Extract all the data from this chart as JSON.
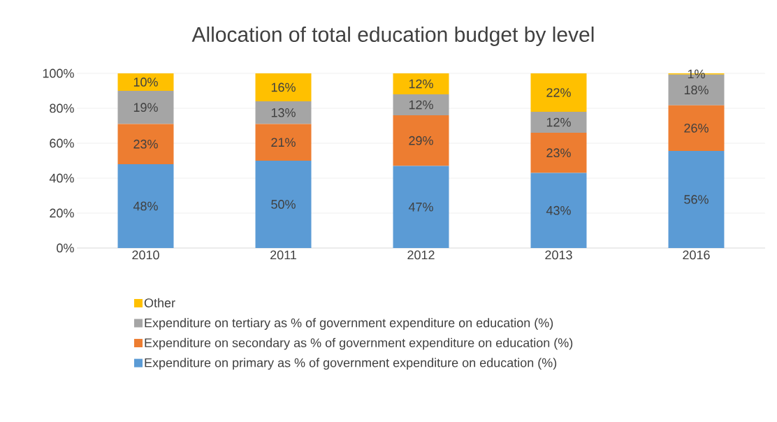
{
  "chart_data": {
    "type": "bar",
    "stacked": true,
    "title": "Allocation of total education budget by level",
    "categories": [
      "2010",
      "2011",
      "2012",
      "2013",
      "2016"
    ],
    "series": [
      {
        "name": "Expenditure on primary as % of government expenditure on education (%)",
        "color": "#5b9bd5",
        "values": [
          48,
          50,
          47,
          43,
          55.6
        ],
        "value_labels": [
          "48%",
          "50%",
          "47%",
          "43%",
          "56%"
        ]
      },
      {
        "name": "Expenditure on secondary as % of government expenditure on education (%)",
        "color": "#ed7d31",
        "values": [
          23,
          21,
          29,
          23,
          26.1
        ],
        "value_labels": [
          "23%",
          "21%",
          "29%",
          "23%",
          "26%"
        ]
      },
      {
        "name": "Expenditure on tertiary as % of government expenditure on education (%)",
        "color": "#a5a5a5",
        "values": [
          19,
          13,
          12,
          12,
          17.6
        ],
        "value_labels": [
          "19%",
          "13%",
          "12%",
          "12%",
          "18%"
        ]
      },
      {
        "name": "Other",
        "color": "#ffc000",
        "values": [
          10,
          16,
          12,
          22,
          0.7
        ],
        "value_labels": [
          "10%",
          "16%",
          "12%",
          "22%",
          "1%"
        ]
      }
    ],
    "ylim": [
      0,
      100
    ],
    "yticks": [
      {
        "value": 0,
        "label": "0%"
      },
      {
        "value": 20,
        "label": "20%"
      },
      {
        "value": 40,
        "label": "40%"
      },
      {
        "value": 60,
        "label": "60%"
      },
      {
        "value": 80,
        "label": "80%"
      },
      {
        "value": 100,
        "label": "100%"
      }
    ],
    "grid": "y",
    "legend": "bottom"
  }
}
